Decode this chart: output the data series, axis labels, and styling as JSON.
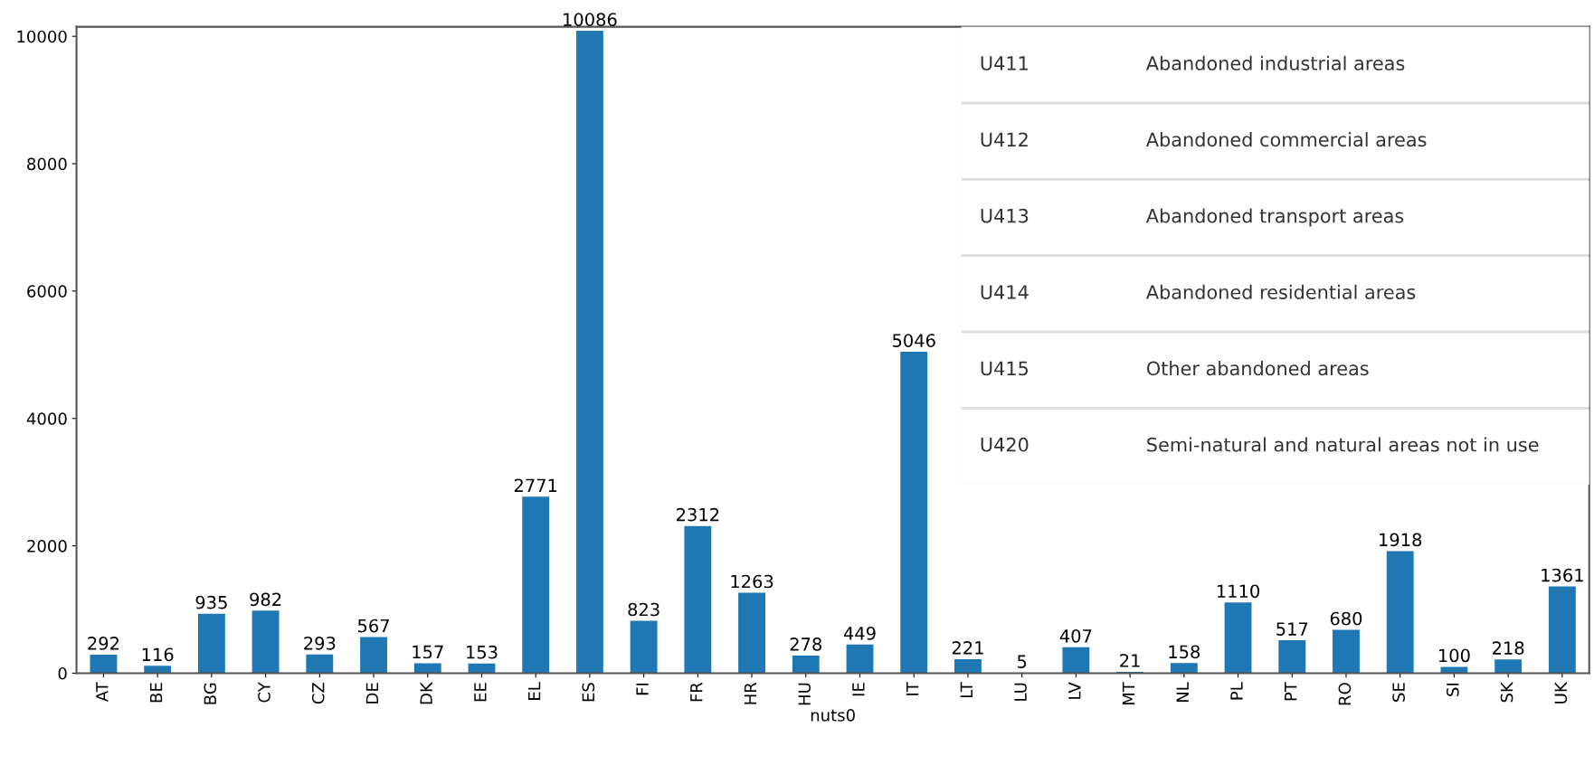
{
  "chart_data": {
    "type": "bar",
    "xlabel": "nuts0",
    "categories": [
      "AT",
      "BE",
      "BG",
      "CY",
      "CZ",
      "DE",
      "DK",
      "EE",
      "EL",
      "ES",
      "FI",
      "FR",
      "HR",
      "HU",
      "IE",
      "IT",
      "LT",
      "LU",
      "LV",
      "MT",
      "NL",
      "PL",
      "PT",
      "RO",
      "SE",
      "SI",
      "SK",
      "UK"
    ],
    "values": [
      292,
      116,
      935,
      982,
      293,
      567,
      157,
      153,
      2771,
      10086,
      823,
      2312,
      1263,
      278,
      449,
      5046,
      221,
      5,
      407,
      21,
      158,
      1110,
      517,
      680,
      1918,
      100,
      218,
      1361
    ],
    "color": "#1f77b4",
    "data_labels": true,
    "ylim": [
      0,
      10150
    ],
    "yticks": [
      0,
      2000,
      4000,
      6000,
      8000,
      10000
    ],
    "annotations": [
      "U411",
      "Abandoned industrial areas",
      "U412",
      "Abandoned commercial areas",
      "U413",
      "Abandoned transport areas",
      "U414",
      "Abandoned residential areas",
      "U415",
      "Other abandoned areas",
      "U420",
      "Semi-natural and natural areas not in use"
    ]
  }
}
